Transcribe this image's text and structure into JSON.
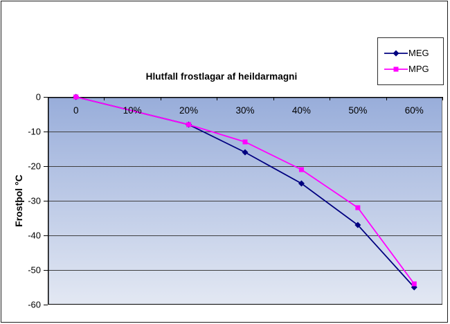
{
  "chart_data": {
    "type": "line",
    "title": "Hlutfall frostlagar af heildarmagni",
    "ylabel": "Frostþol °C",
    "categories": [
      "0",
      "10%",
      "20%",
      "30%",
      "40%",
      "50%",
      "60%"
    ],
    "ytick_labels": [
      "0",
      "-10",
      "-20",
      "-30",
      "-40",
      "-50",
      "-60"
    ],
    "ytick_values": [
      0,
      -10,
      -20,
      -30,
      -40,
      -50,
      -60
    ],
    "ylim": [
      -60,
      0
    ],
    "grid": "horizontal",
    "legend_position": "top-right",
    "series": [
      {
        "name": "MEG",
        "color": "#000080",
        "marker": "diamond",
        "values": [
          0,
          null,
          -8,
          -16,
          -25,
          -37,
          -55
        ]
      },
      {
        "name": "MPG",
        "color": "#FF00FF",
        "marker": "square",
        "values": [
          0,
          null,
          -8,
          -13,
          -21,
          -32,
          -54
        ]
      }
    ],
    "plot_background": {
      "gradient_top": "#98ADDA",
      "gradient_bottom": "#E3E8F3"
    },
    "gridline_color": "#3f3f3f",
    "axis_color": "#000000",
    "border_color": "#6e6e6e"
  }
}
